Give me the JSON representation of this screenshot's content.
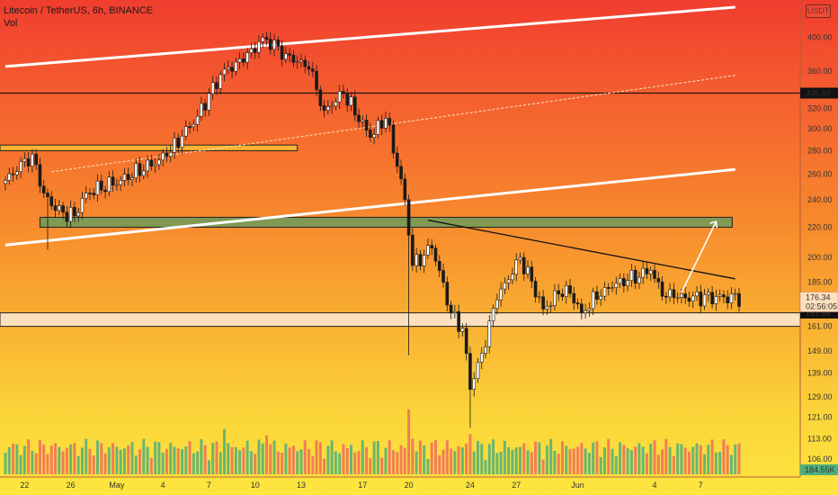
{
  "header": {
    "symbol_title": "Litecoin / TetherUS, 6h, BINANCE",
    "volume_label": "Vol",
    "quote_currency": "USDT"
  },
  "price_axis": {
    "tick_labels": [
      "400.00",
      "360.00",
      "335.69",
      "320.00",
      "300.00",
      "280.00",
      "260.00",
      "240.00",
      "220.00",
      "200.00",
      "185.00",
      "176.34",
      "167.86",
      "161.00",
      "149.00",
      "139.00",
      "129.00",
      "121.00",
      "113.00",
      "106.00",
      "184.55K"
    ],
    "last_price_tag": "176.34",
    "countdown_tag": "02:56:05",
    "level_tag": "167.86",
    "resistance_tag": "335.69",
    "volume_tag": "184.55K"
  },
  "chart_data": {
    "type": "candlestick",
    "title": "Litecoin / TetherUS, 6h, BINANCE",
    "y_scale": "log",
    "ylim": [
      96,
      440
    ],
    "y_ticks": [
      400,
      360,
      320,
      300,
      280,
      260,
      240,
      220,
      200,
      185,
      161,
      149,
      139,
      129,
      121,
      113,
      106
    ],
    "x_tick_labels": [
      "22",
      "26",
      "May",
      "4",
      "7",
      "10",
      "13",
      "17",
      "20",
      "24",
      "27",
      "Jun",
      "4",
      "7"
    ],
    "x_tick_index": [
      5,
      17,
      29,
      41,
      53,
      65,
      77,
      93,
      105,
      121,
      133,
      149,
      169,
      181
    ],
    "n_candles": 192,
    "volume_last": "184.55K",
    "keypoints": [
      {
        "i": 0,
        "close": 255
      },
      {
        "i": 7,
        "close": 277
      },
      {
        "i": 10,
        "close": 245
      },
      {
        "i": 13,
        "close": 232
      },
      {
        "i": 18,
        "close": 228
      },
      {
        "i": 21,
        "close": 245
      },
      {
        "i": 30,
        "close": 255
      },
      {
        "i": 42,
        "close": 275
      },
      {
        "i": 50,
        "close": 312
      },
      {
        "i": 57,
        "close": 362
      },
      {
        "i": 62,
        "close": 370
      },
      {
        "i": 67,
        "close": 400
      },
      {
        "i": 73,
        "close": 380
      },
      {
        "i": 79,
        "close": 362
      },
      {
        "i": 83,
        "close": 318
      },
      {
        "i": 88,
        "close": 335
      },
      {
        "i": 95,
        "close": 292
      },
      {
        "i": 99,
        "close": 310
      },
      {
        "i": 104,
        "close": 240
      },
      {
        "i": 106,
        "close": 195
      },
      {
        "i": 111,
        "close": 206
      },
      {
        "i": 116,
        "close": 168
      },
      {
        "i": 119,
        "close": 160
      },
      {
        "i": 121,
        "close": 132
      },
      {
        "i": 124,
        "close": 148
      },
      {
        "i": 128,
        "close": 175
      },
      {
        "i": 134,
        "close": 200
      },
      {
        "i": 140,
        "close": 170
      },
      {
        "i": 146,
        "close": 183
      },
      {
        "i": 150,
        "close": 168
      },
      {
        "i": 156,
        "close": 182
      },
      {
        "i": 162,
        "close": 186
      },
      {
        "i": 168,
        "close": 192
      },
      {
        "i": 171,
        "close": 177
      },
      {
        "i": 174,
        "close": 176.34
      }
    ],
    "annotations": {
      "resistance_level": 335.69,
      "support_level": 167.86,
      "support_zone": [
        161,
        168
      ],
      "demand_zone": [
        220,
        227
      ],
      "old_zone_band": [
        280,
        285
      ],
      "channel_upper": [
        [
          0,
          365
        ],
        [
          190,
          440
        ]
      ],
      "channel_lower": [
        [
          0,
          208
        ],
        [
          190,
          264
        ]
      ],
      "channel_mid": [
        [
          12,
          262
        ],
        [
          190,
          355
        ]
      ],
      "descending_trendline": [
        [
          110,
          225
        ],
        [
          190,
          187
        ]
      ],
      "projection_arrow": [
        [
          176,
          179
        ],
        [
          185,
          224
        ]
      ]
    }
  },
  "colors": {
    "bull_candle": "#ffffff",
    "bear_candle": "#1a1a1a",
    "vol_up": "#4daf7c",
    "vol_down": "#ef6c5d",
    "support_zone_fill": "#fde0bd",
    "demand_zone_fill": "#6b9b5a",
    "channel_line": "#ffffff",
    "trendline": "#111111"
  }
}
